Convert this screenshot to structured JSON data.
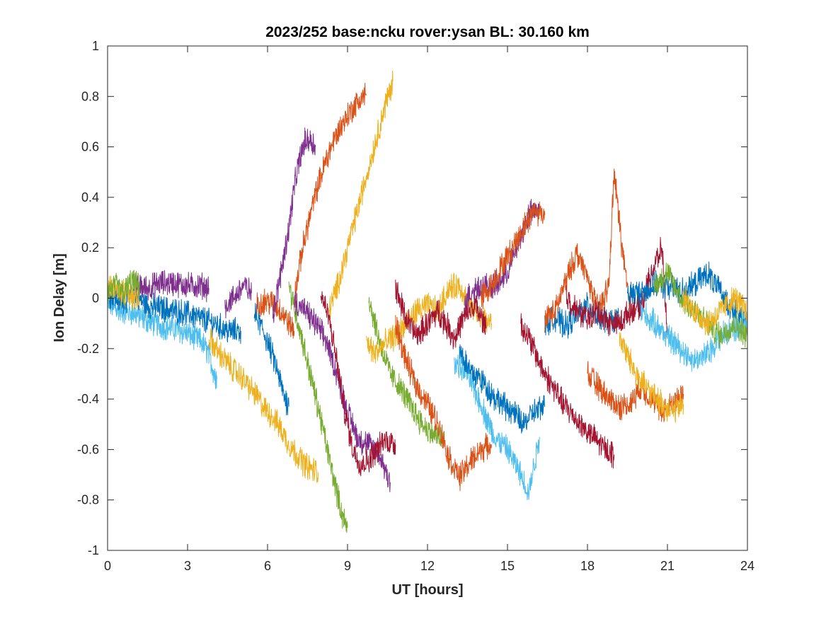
{
  "chart_data": {
    "type": "line",
    "title": "2023/252 base:ncku rover:ysan BL: 30.160 km",
    "xlabel": "UT [hours]",
    "ylabel": "Ion Delay [m]",
    "xlim": [
      0,
      24
    ],
    "ylim": [
      -1,
      1
    ],
    "xticks": [
      0,
      3,
      6,
      9,
      12,
      15,
      18,
      21,
      24
    ],
    "yticks": [
      -1,
      -0.8,
      -0.6,
      -0.4,
      -0.2,
      0,
      0.2,
      0.4,
      0.6,
      0.8,
      1
    ],
    "xtick_labels": [
      "0",
      "3",
      "6",
      "9",
      "12",
      "15",
      "18",
      "21",
      "24"
    ],
    "ytick_labels": [
      "-1",
      "-0.8",
      "-0.6",
      "-0.4",
      "-0.2",
      "0",
      "0.2",
      "0.4",
      "0.6",
      "0.8",
      "1"
    ],
    "grid": false,
    "box": true,
    "colors": [
      "#0072BD",
      "#D95319",
      "#EDB120",
      "#7E2F8E",
      "#77AC30",
      "#4DBEEE",
      "#A2142F"
    ],
    "series": [
      {
        "color": "#4DBEEE",
        "x": [
          0,
          0.5,
          1,
          1.5,
          2,
          2.5,
          3,
          3.5,
          3.8,
          4.0,
          4.1
        ],
        "y": [
          -0.02,
          -0.05,
          -0.06,
          -0.09,
          -0.11,
          -0.12,
          -0.14,
          -0.17,
          -0.22,
          -0.3,
          -0.32
        ]
      },
      {
        "color": "#0072BD",
        "x": [
          0,
          0.5,
          1,
          1.5,
          2,
          2.5,
          3,
          3.5,
          4,
          4.5,
          5
        ],
        "y": [
          0.02,
          -0.01,
          0.01,
          -0.03,
          -0.04,
          -0.05,
          -0.06,
          -0.08,
          -0.1,
          -0.13,
          -0.13
        ]
      },
      {
        "color": "#7E2F8E",
        "x": [
          1.0,
          1.5,
          2,
          2.5,
          3,
          3.5,
          3.8
        ],
        "y": [
          0.05,
          0.04,
          0.06,
          0.06,
          0.05,
          0.05,
          0.04
        ]
      },
      {
        "color": "#EDB120",
        "x": [
          0,
          0.4,
          0.8,
          1.2
        ],
        "y": [
          0.04,
          0.03,
          0.01,
          -0.01
        ]
      },
      {
        "color": "#77AC30",
        "x": [
          0,
          0.3,
          0.6,
          0.9,
          1.2
        ],
        "y": [
          0.03,
          0.05,
          0.02,
          0.07,
          0.04
        ]
      },
      {
        "color": "#0072BD",
        "x": [
          5.5,
          5.8,
          6.1,
          6.4,
          6.6,
          6.8
        ],
        "y": [
          -0.06,
          -0.12,
          -0.2,
          -0.3,
          -0.38,
          -0.43
        ]
      },
      {
        "color": "#7E2F8E",
        "x": [
          4.4,
          4.8,
          5.1,
          5.4
        ],
        "y": [
          -0.03,
          0.01,
          0.05,
          0.02
        ]
      },
      {
        "color": "#D95319",
        "x": [
          5.6,
          5.9,
          6.2,
          6.5,
          6.8,
          7.0
        ],
        "y": [
          -0.03,
          -0.01,
          -0.02,
          -0.05,
          -0.1,
          -0.13
        ]
      },
      {
        "color": "#EDB120",
        "x": [
          3.8,
          4.2,
          4.6,
          5.0,
          5.3,
          5.6,
          5.9,
          6.2,
          6.5,
          6.8,
          7.1,
          7.4,
          7.7,
          7.9
        ],
        "y": [
          -0.16,
          -0.22,
          -0.27,
          -0.31,
          -0.35,
          -0.39,
          -0.44,
          -0.47,
          -0.52,
          -0.58,
          -0.62,
          -0.66,
          -0.68,
          -0.69
        ]
      },
      {
        "color": "#7E2F8E",
        "x": [
          6.2,
          6.5,
          6.8,
          7.0,
          7.2,
          7.4,
          7.6,
          7.8
        ],
        "y": [
          -0.07,
          0.1,
          0.28,
          0.44,
          0.55,
          0.62,
          0.63,
          0.6
        ]
      },
      {
        "color": "#77AC30",
        "x": [
          6.8,
          7.2,
          7.6,
          8.0,
          8.3,
          8.6,
          8.8,
          9.0
        ],
        "y": [
          0.05,
          -0.12,
          -0.3,
          -0.48,
          -0.63,
          -0.77,
          -0.86,
          -0.91
        ]
      },
      {
        "color": "#D95319",
        "x": [
          7.0,
          7.3,
          7.6,
          7.9,
          8.2,
          8.5,
          8.8,
          9.1,
          9.4,
          9.7
        ],
        "y": [
          0.0,
          0.19,
          0.33,
          0.45,
          0.55,
          0.63,
          0.69,
          0.74,
          0.78,
          0.81
        ]
      },
      {
        "color": "#EDB120",
        "x": [
          8.3,
          8.6,
          8.9,
          9.2,
          9.5,
          9.8,
          10.1,
          10.4,
          10.7
        ],
        "y": [
          -0.05,
          0.04,
          0.16,
          0.28,
          0.4,
          0.52,
          0.64,
          0.76,
          0.86
        ]
      },
      {
        "color": "#7E2F8E",
        "x": [
          7.0,
          7.4,
          7.8,
          8.2,
          8.6,
          9.0,
          9.4,
          9.8,
          10.2,
          10.6
        ],
        "y": [
          -0.01,
          -0.05,
          -0.1,
          -0.17,
          -0.3,
          -0.45,
          -0.56,
          -0.58,
          -0.62,
          -0.73
        ]
      },
      {
        "color": "#A2142F",
        "x": [
          8.0,
          8.3,
          8.6,
          8.9,
          9.2,
          9.5,
          9.8,
          10.1,
          10.4,
          10.8
        ],
        "y": [
          0.02,
          -0.08,
          -0.25,
          -0.45,
          -0.6,
          -0.66,
          -0.64,
          -0.6,
          -0.56,
          -0.58
        ]
      },
      {
        "color": "#77AC30",
        "x": [
          9.8,
          10.2,
          10.6,
          11.0,
          11.4,
          11.8,
          12.2,
          12.6
        ],
        "y": [
          0.0,
          -0.17,
          -0.3,
          -0.36,
          -0.43,
          -0.5,
          -0.54,
          -0.56
        ]
      },
      {
        "color": "#EDB120",
        "x": [
          9.7,
          10.0,
          10.4,
          10.8,
          11.2,
          11.6,
          12.0,
          12.4,
          12.8,
          13.2,
          13.6,
          14.0,
          14.4
        ],
        "y": [
          -0.17,
          -0.22,
          -0.18,
          -0.15,
          -0.1,
          -0.05,
          -0.03,
          -0.05,
          0.04,
          0.05,
          -0.03,
          -0.08,
          -0.1
        ]
      },
      {
        "color": "#D95319",
        "x": [
          10.8,
          11.2,
          11.6,
          12.0,
          12.4,
          12.8,
          13.2,
          13.6,
          14.0,
          14.4
        ],
        "y": [
          -0.1,
          -0.25,
          -0.35,
          -0.42,
          -0.5,
          -0.63,
          -0.71,
          -0.65,
          -0.6,
          -0.58
        ]
      },
      {
        "color": "#A2142F",
        "x": [
          10.8,
          11.2,
          11.6,
          12.0,
          12.4,
          12.8,
          13.0,
          13.4,
          13.8,
          14.2
        ],
        "y": [
          0.04,
          -0.08,
          -0.15,
          -0.1,
          -0.05,
          -0.12,
          -0.16,
          -0.07,
          -0.03,
          -0.12
        ]
      },
      {
        "color": "#4DBEEE",
        "x": [
          13.0,
          13.5,
          14.0,
          14.5,
          15.0,
          15.4,
          15.8,
          16.2
        ],
        "y": [
          -0.25,
          -0.3,
          -0.42,
          -0.55,
          -0.6,
          -0.68,
          -0.77,
          -0.55
        ]
      },
      {
        "color": "#0072BD",
        "x": [
          13.2,
          13.6,
          14.0,
          14.4,
          14.8,
          15.2,
          15.6,
          16.0,
          16.4
        ],
        "y": [
          -0.2,
          -0.29,
          -0.32,
          -0.38,
          -0.42,
          -0.45,
          -0.5,
          -0.45,
          -0.43
        ]
      },
      {
        "color": "#7E2F8E",
        "x": [
          13.4,
          13.8,
          14.2,
          14.6,
          15.0,
          15.4,
          15.8,
          16.2
        ],
        "y": [
          0.0,
          0.04,
          0.05,
          0.05,
          0.1,
          0.22,
          0.33,
          0.36
        ]
      },
      {
        "color": "#D95319",
        "x": [
          14.0,
          14.4,
          14.8,
          15.2,
          15.6,
          16.0,
          16.4
        ],
        "y": [
          0.0,
          0.05,
          0.13,
          0.2,
          0.28,
          0.35,
          0.33
        ]
      },
      {
        "color": "#A2142F",
        "x": [
          15.5,
          15.9,
          16.3,
          16.7,
          17.1,
          17.5,
          17.9,
          18.3,
          18.7,
          19.0
        ],
        "y": [
          -0.1,
          -0.18,
          -0.28,
          -0.35,
          -0.42,
          -0.47,
          -0.52,
          -0.56,
          -0.6,
          -0.62
        ]
      },
      {
        "color": "#0072BD",
        "x": [
          16.4,
          16.8,
          17.2,
          17.6,
          18.0,
          18.4,
          18.8,
          19.2
        ],
        "y": [
          -0.1,
          -0.08,
          -0.11,
          -0.07,
          -0.03,
          -0.07,
          -0.1,
          -0.08
        ]
      },
      {
        "color": "#D95319",
        "x": [
          16.4,
          16.8,
          17.2,
          17.6,
          18.0,
          18.4,
          18.8,
          19.0,
          19.3,
          19.6
        ],
        "y": [
          -0.08,
          -0.05,
          0.07,
          0.18,
          0.08,
          -0.05,
          0.05,
          0.5,
          0.2,
          -0.05
        ]
      },
      {
        "color": "#A2142F",
        "x": [
          17.2,
          17.6,
          18.0,
          18.4,
          18.8,
          19.2,
          19.6,
          20.0,
          20.4,
          20.8,
          21.0
        ],
        "y": [
          0.01,
          -0.05,
          -0.08,
          -0.05,
          -0.1,
          -0.1,
          -0.05,
          -0.03,
          0.1,
          0.2,
          -0.15
        ]
      },
      {
        "color": "#D95319",
        "x": [
          18.0,
          18.4,
          18.8,
          19.2,
          19.6,
          20.0,
          20.4,
          20.8,
          21.2,
          21.6
        ],
        "y": [
          -0.3,
          -0.35,
          -0.4,
          -0.43,
          -0.42,
          -0.35,
          -0.4,
          -0.45,
          -0.42,
          -0.38
        ]
      },
      {
        "color": "#EDB120",
        "x": [
          19.2,
          19.6,
          20.0,
          20.4,
          20.8,
          21.2,
          21.6
        ],
        "y": [
          -0.15,
          -0.25,
          -0.33,
          -0.38,
          -0.42,
          -0.45,
          -0.42
        ]
      },
      {
        "color": "#0072BD",
        "x": [
          19.5,
          20.0,
          20.5,
          21.0,
          21.5,
          22.0,
          22.5,
          23.0,
          23.5,
          24.0
        ],
        "y": [
          0.02,
          0.02,
          0.05,
          0.05,
          0.03,
          0.05,
          0.1,
          0.02,
          -0.05,
          -0.1
        ]
      },
      {
        "color": "#4DBEEE",
        "x": [
          20.0,
          20.5,
          21.0,
          21.5,
          22.0,
          22.5,
          23.0,
          23.5,
          24.0
        ],
        "y": [
          -0.05,
          -0.1,
          -0.15,
          -0.2,
          -0.25,
          -0.22,
          -0.15,
          -0.12,
          -0.1
        ]
      },
      {
        "color": "#77AC30",
        "x": [
          20.5,
          21.0,
          21.5,
          22.0,
          22.5,
          23.0,
          23.5,
          24.0
        ],
        "y": [
          0.05,
          0.1,
          0.0,
          -0.05,
          -0.1,
          -0.15,
          -0.1,
          -0.15
        ]
      },
      {
        "color": "#EDB120",
        "x": [
          21.6,
          22.0,
          22.5,
          23.0,
          23.5,
          24.0
        ],
        "y": [
          0.0,
          -0.05,
          -0.1,
          -0.05,
          0.0,
          -0.05
        ]
      }
    ]
  }
}
